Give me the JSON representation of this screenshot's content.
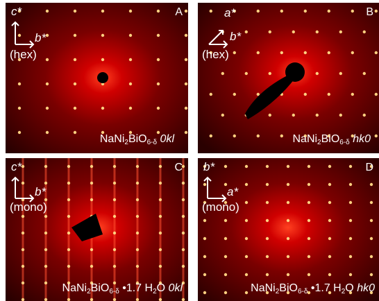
{
  "panels": [
    {
      "letter": "A",
      "axis_up": "c*",
      "axis_right": "b*",
      "frame": "(hex)",
      "caption": [
        "NaNi",
        "2",
        "BiO",
        "6-δ",
        "0kl"
      ]
    },
    {
      "letter": "B",
      "axis_up": "a*",
      "axis_right": "b*",
      "frame": "(hex)",
      "caption": [
        "NaNi",
        "2",
        "BiO",
        "6-δ",
        "hk0"
      ]
    },
    {
      "letter": "C",
      "axis_up": "c*",
      "axis_right": "b*",
      "frame": "(mono)",
      "caption": [
        "NaNi",
        "2",
        "BiO",
        "6-δ",
        "•1.7 H",
        "2",
        "O",
        "0kl"
      ]
    },
    {
      "letter": "D",
      "axis_up": "b*",
      "axis_right": "a*",
      "frame": "(mono)",
      "caption": [
        "NaNi",
        "2",
        "BiO",
        "6-δ",
        "•1.7 H",
        "2",
        "O",
        "hk0"
      ]
    }
  ]
}
